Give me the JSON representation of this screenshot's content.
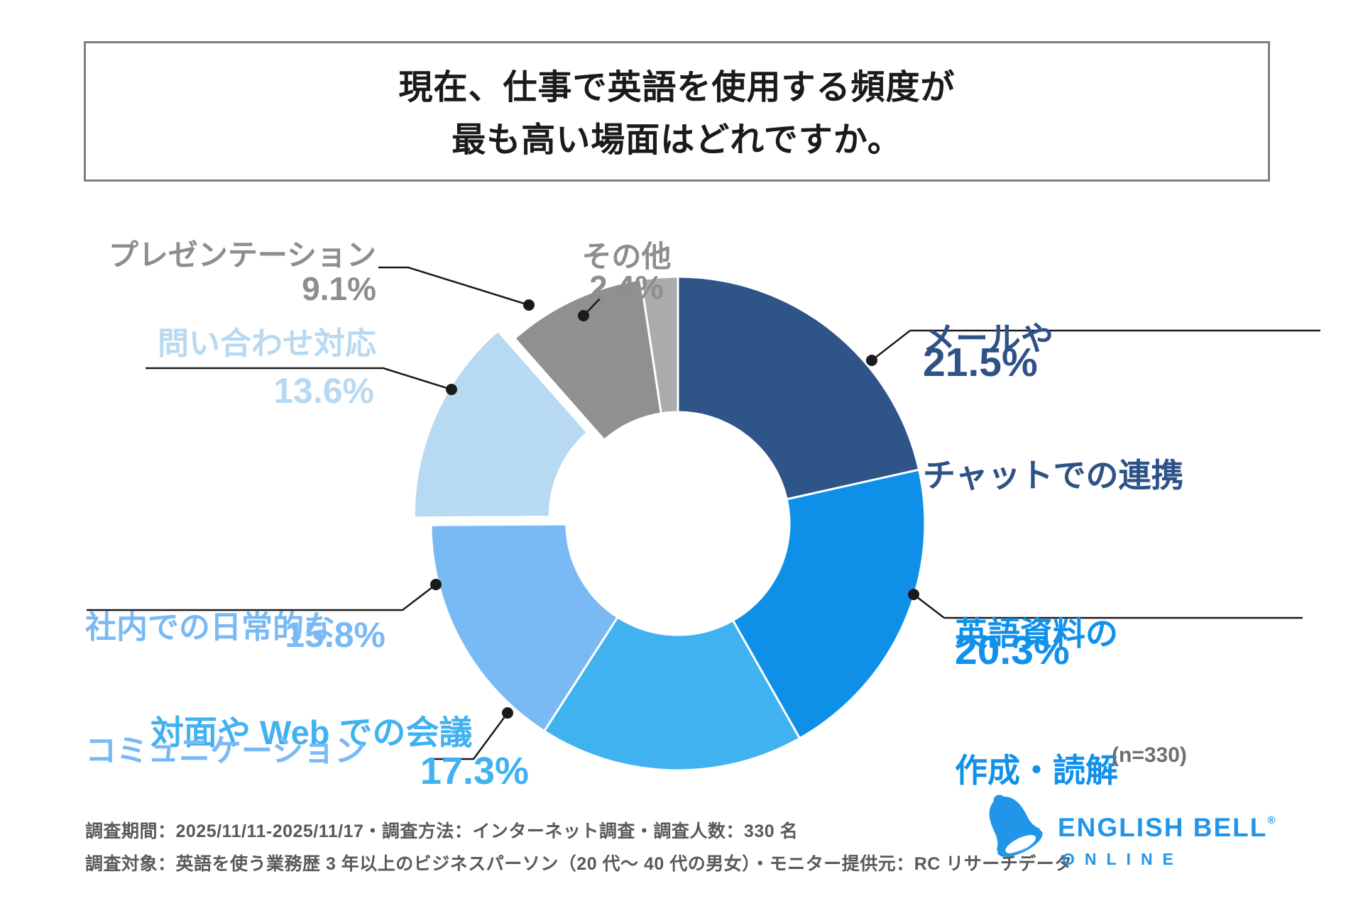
{
  "title": {
    "line1": "現在、仕事で英語を使用する頻度が",
    "line2": "最も高い場面はどれですか。"
  },
  "sample_note": "(n=330)",
  "footer": {
    "line1": "調査期間：2025/11/11-2025/11/17・調査方法：インターネット調査・調査人数：330 名",
    "line2": "調査対象：英語を使う業務歴 3 年以上のビジネスパーソン（20 代〜 40 代の男女）・モニター提供元：RC リサーチデータ"
  },
  "logo": {
    "name": "ENGLISH BELL",
    "registered": "®",
    "subtitle": "ONLINE",
    "color": "#2196e8"
  },
  "chart_data": {
    "type": "pie",
    "subtype": "donut",
    "title": "現在、仕事で英語を使用する頻度が最も高い場面はどれですか。",
    "unit": "%",
    "n": 330,
    "total": 100.0,
    "start_angle_deg": 0,
    "direction": "clockwise",
    "donut_hole_ratio": 0.45,
    "legend_position": "labels-around-chart",
    "segments": [
      {
        "id": "mail",
        "label": "メールやチャットでの連携",
        "label_lines": [
          "メールや",
          "チャットでの連携"
        ],
        "value": 21.5,
        "pct": "21.5%",
        "color": "#2f5488",
        "label_color": "#2e5286",
        "exploded": false
      },
      {
        "id": "docs",
        "label": "英語資料の作成・読解",
        "label_lines": [
          "英語資料の",
          "作成・読解"
        ],
        "value": 20.3,
        "pct": "20.3%",
        "color": "#0e90e9",
        "label_color": "#1191ea",
        "exploded": false
      },
      {
        "id": "meeting",
        "label": "対面や Web での会議",
        "label_lines": [
          "対面や Web での会議"
        ],
        "value": 17.3,
        "pct": "17.3%",
        "color": "#41b2f0",
        "label_color": "#41b2f0",
        "exploded": false
      },
      {
        "id": "internal",
        "label": "社内での日常的なコミュニケーション",
        "label_lines": [
          "社内での日常的な",
          "コミュニケーション"
        ],
        "value": 15.8,
        "pct": "15.8%",
        "color": "#79baf5",
        "label_color": "#79baf5",
        "exploded": false
      },
      {
        "id": "inquiry",
        "label": "問い合わせ対応",
        "label_lines": [
          "問い合わせ対応"
        ],
        "value": 13.6,
        "pct": "13.6%",
        "color": "#b8d9f2",
        "label_color": "#b8d9f2",
        "exploded": true
      },
      {
        "id": "presentation",
        "label": "プレゼンテーション",
        "label_lines": [
          "プレゼンテーション"
        ],
        "value": 9.1,
        "pct": "9.1%",
        "color": "#909090",
        "label_color": "#8e8e8e",
        "exploded": false
      },
      {
        "id": "other",
        "label": "その他",
        "label_lines": [
          "その他"
        ],
        "value": 2.4,
        "pct": "2.4%",
        "color": "#ababab",
        "label_color": "#8e8e8e",
        "exploded": false
      }
    ]
  }
}
